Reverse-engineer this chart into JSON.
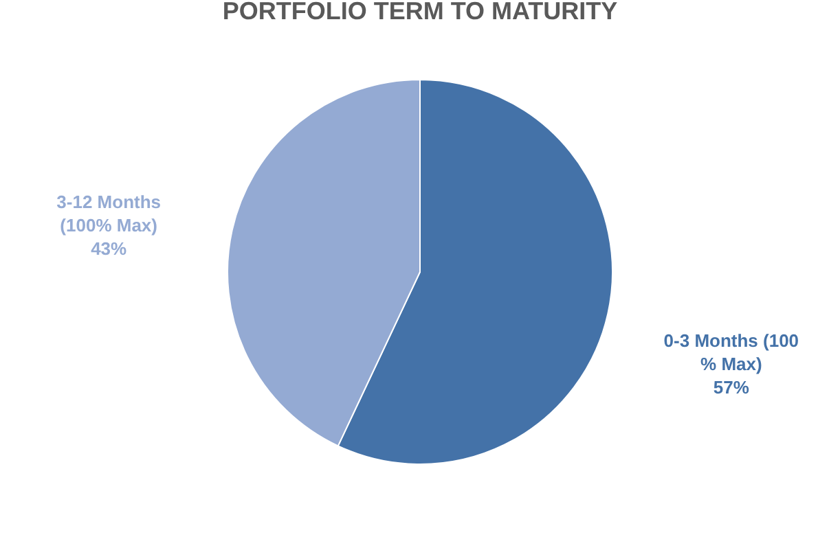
{
  "chart_data": {
    "type": "pie",
    "title": "PORTFOLIO TERM TO MATURITY",
    "categories": [
      "0-3 Months (100 % Max)",
      "3-12 Months (100% Max)"
    ],
    "values": [
      57,
      43
    ],
    "value_labels": [
      "57%",
      "43%"
    ],
    "colors": [
      "#4472a8",
      "#94aad3"
    ],
    "legend": false
  }
}
